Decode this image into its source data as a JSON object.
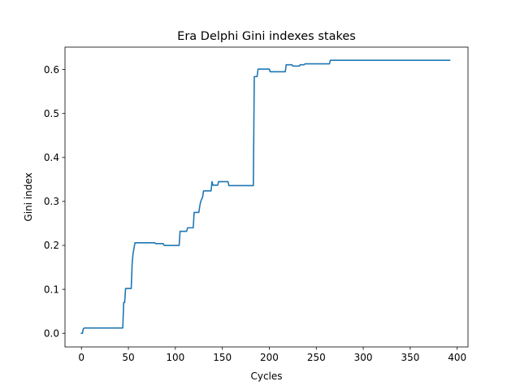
{
  "chart_data": {
    "type": "line",
    "title": "Era Delphi Gini indexes stakes",
    "xlabel": "Cycles",
    "ylabel": "Gini index",
    "xlim": [
      -17.5,
      411.5
    ],
    "ylim": [
      -0.031,
      0.651
    ],
    "xticks": [
      0,
      50,
      100,
      150,
      200,
      250,
      300,
      350,
      400
    ],
    "xtick_labels": [
      "0",
      "50",
      "100",
      "150",
      "200",
      "250",
      "300",
      "350",
      "400"
    ],
    "yticks": [
      0.0,
      0.1,
      0.2,
      0.3,
      0.4,
      0.5,
      0.6
    ],
    "ytick_labels": [
      "0.0",
      "0.1",
      "0.2",
      "0.3",
      "0.4",
      "0.5",
      "0.6"
    ],
    "grid": false,
    "legend": "none",
    "colors": {
      "line": "#1f77b4"
    },
    "series": [
      {
        "x": [
          0,
          1,
          2,
          3,
          44,
          45,
          46,
          47,
          53,
          54,
          55,
          57,
          78,
          79,
          87,
          88,
          104,
          105,
          112,
          113,
          119,
          120,
          125,
          126,
          127,
          128,
          129,
          130,
          131,
          138,
          139,
          140,
          141,
          145,
          146,
          156,
          157,
          183,
          184,
          187,
          188,
          200,
          201,
          217,
          218,
          224,
          225,
          232,
          233,
          237,
          238,
          264,
          265,
          392
        ],
        "y": [
          0.0,
          0.0,
          0.01,
          0.012,
          0.012,
          0.07,
          0.07,
          0.102,
          0.102,
          0.16,
          0.182,
          0.206,
          0.206,
          0.204,
          0.204,
          0.2,
          0.2,
          0.232,
          0.232,
          0.24,
          0.24,
          0.275,
          0.275,
          0.29,
          0.3,
          0.305,
          0.31,
          0.324,
          0.324,
          0.324,
          0.345,
          0.337,
          0.337,
          0.337,
          0.345,
          0.345,
          0.336,
          0.336,
          0.584,
          0.584,
          0.601,
          0.601,
          0.595,
          0.595,
          0.611,
          0.611,
          0.608,
          0.608,
          0.611,
          0.611,
          0.613,
          0.613,
          0.621,
          0.621
        ]
      }
    ]
  }
}
